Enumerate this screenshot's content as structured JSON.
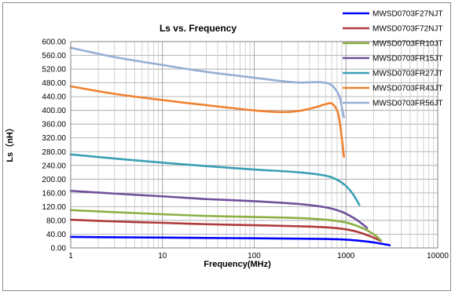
{
  "chart_data": {
    "type": "line",
    "title": "Ls vs.  Frequency",
    "xlabel": "Frequency(MHz)",
    "ylabel": "Ls（nH）",
    "x_scale": "log",
    "xlim": [
      1,
      10000
    ],
    "ylim": [
      0,
      600
    ],
    "x_ticks": [
      "1",
      "10",
      "100",
      "1000",
      "10000"
    ],
    "y_ticks": [
      "0.00",
      "40.00",
      "80.00",
      "120.00",
      "160.00",
      "200.00",
      "240.00",
      "280.00",
      "320.00",
      "360.00",
      "400.00",
      "440.00",
      "480.00",
      "520.00",
      "560.00",
      "600.00"
    ],
    "grid": true,
    "legend_position": "top-right",
    "series": [
      {
        "name": "MWSD0703F27NJT",
        "color": "#0000ff",
        "points": [
          [
            1,
            32
          ],
          [
            3,
            31
          ],
          [
            10,
            30
          ],
          [
            30,
            29
          ],
          [
            100,
            28
          ],
          [
            300,
            27
          ],
          [
            600,
            26
          ],
          [
            1000,
            24
          ],
          [
            1500,
            20
          ],
          [
            2000,
            16
          ],
          [
            3000,
            8
          ]
        ]
      },
      {
        "name": "MWSD0703F72NJT",
        "color": "#b03a3a",
        "points": [
          [
            1,
            82
          ],
          [
            3,
            77
          ],
          [
            10,
            73
          ],
          [
            30,
            69
          ],
          [
            100,
            66
          ],
          [
            300,
            63
          ],
          [
            600,
            60
          ],
          [
            1000,
            54
          ],
          [
            1400,
            45
          ],
          [
            2000,
            30
          ],
          [
            2400,
            20
          ]
        ]
      },
      {
        "name": "MWSD0703FR10JT",
        "color": "#8cb043",
        "points": [
          [
            1,
            110
          ],
          [
            3,
            104
          ],
          [
            10,
            98
          ],
          [
            30,
            93
          ],
          [
            100,
            90
          ],
          [
            300,
            87
          ],
          [
            600,
            82
          ],
          [
            1000,
            74
          ],
          [
            1500,
            58
          ],
          [
            2000,
            40
          ],
          [
            2400,
            22
          ]
        ]
      },
      {
        "name": "MWSD0703FR15JT",
        "color": "#6f4f9b",
        "points": [
          [
            1,
            166
          ],
          [
            3,
            158
          ],
          [
            10,
            150
          ],
          [
            30,
            142
          ],
          [
            100,
            136
          ],
          [
            300,
            128
          ],
          [
            600,
            118
          ],
          [
            900,
            105
          ],
          [
            1200,
            88
          ],
          [
            1500,
            70
          ],
          [
            1700,
            58
          ]
        ]
      },
      {
        "name": "MWSD0703FR27JT",
        "color": "#3aa0b4",
        "points": [
          [
            1,
            272
          ],
          [
            3,
            260
          ],
          [
            10,
            248
          ],
          [
            30,
            238
          ],
          [
            100,
            228
          ],
          [
            300,
            220
          ],
          [
            600,
            210
          ],
          [
            800,
            198
          ],
          [
            1000,
            180
          ],
          [
            1200,
            155
          ],
          [
            1400,
            125
          ]
        ]
      },
      {
        "name": "MWSD0703FR43JT",
        "color": "#f0812e",
        "points": [
          [
            1,
            470
          ],
          [
            3,
            448
          ],
          [
            10,
            430
          ],
          [
            30,
            415
          ],
          [
            100,
            400
          ],
          [
            200,
            395
          ],
          [
            300,
            398
          ],
          [
            450,
            408
          ],
          [
            600,
            418
          ],
          [
            700,
            420
          ],
          [
            800,
            400
          ],
          [
            850,
            370
          ],
          [
            900,
            320
          ],
          [
            950,
            265
          ]
        ]
      },
      {
        "name": "MWSD0703FR56JT",
        "color": "#96aed4",
        "points": [
          [
            1,
            582
          ],
          [
            3,
            555
          ],
          [
            10,
            532
          ],
          [
            30,
            512
          ],
          [
            100,
            495
          ],
          [
            200,
            485
          ],
          [
            300,
            481
          ],
          [
            500,
            482
          ],
          [
            650,
            478
          ],
          [
            750,
            465
          ],
          [
            850,
            440
          ],
          [
            900,
            410
          ],
          [
            950,
            380
          ]
        ]
      }
    ]
  }
}
